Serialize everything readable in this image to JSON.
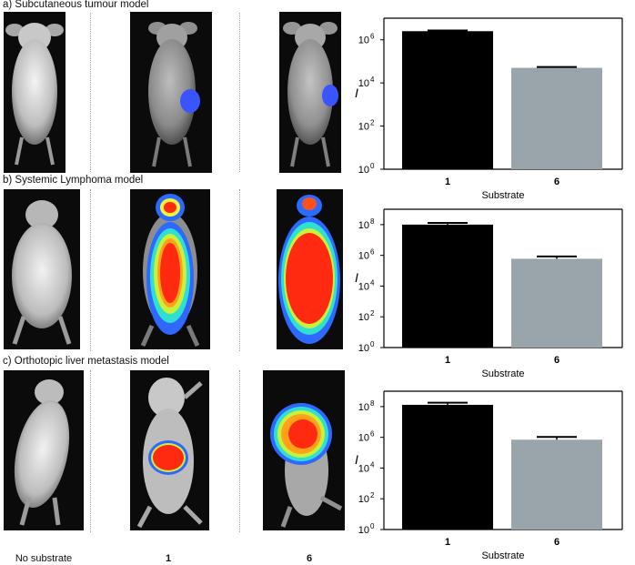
{
  "panels": [
    {
      "label": "a)   Subcutaneous tumour model"
    },
    {
      "label": "b)   Systemic Lymphoma model"
    },
    {
      "label": "c)   Orthotopic liver metastasis model"
    }
  ],
  "column_labels": [
    "No substrate",
    "1",
    "6"
  ],
  "chart_data": [
    {
      "type": "bar",
      "categories": [
        "1",
        "6"
      ],
      "values": [
        2500000,
        50000
      ],
      "errors": [
        200000,
        5000
      ],
      "colors": [
        "#000000",
        "#9aa4ab"
      ],
      "yscale": "log",
      "ylim": [
        1,
        10000000
      ],
      "yticks": [
        1,
        100,
        10000,
        1000000
      ],
      "ytick_labels": [
        "10",
        "10",
        "10",
        "10"
      ],
      "ytick_exponents": [
        "0",
        "2",
        "4",
        "6"
      ],
      "ylabel": "I",
      "xlabel": "Substrate"
    },
    {
      "type": "bar",
      "categories": [
        "1",
        "6"
      ],
      "values": [
        100000000,
        600000
      ],
      "errors": [
        30000000,
        250000
      ],
      "colors": [
        "#000000",
        "#9aa4ab"
      ],
      "yscale": "log",
      "ylim": [
        1,
        1000000000
      ],
      "yticks": [
        1,
        100,
        10000,
        1000000,
        100000000
      ],
      "ytick_labels": [
        "10",
        "10",
        "10",
        "10",
        "10"
      ],
      "ytick_exponents": [
        "0",
        "2",
        "4",
        "6",
        "8"
      ],
      "ylabel": "I",
      "xlabel": "Substrate"
    },
    {
      "type": "bar",
      "categories": [
        "1",
        "6"
      ],
      "values": [
        130000000,
        700000
      ],
      "errors": [
        50000000,
        350000
      ],
      "colors": [
        "#000000",
        "#9aa4ab"
      ],
      "yscale": "log",
      "ylim": [
        1,
        1000000000
      ],
      "yticks": [
        1,
        100,
        10000,
        1000000,
        100000000
      ],
      "ytick_labels": [
        "10",
        "10",
        "10",
        "10",
        "10"
      ],
      "ytick_exponents": [
        "0",
        "2",
        "4",
        "6",
        "8"
      ],
      "ylabel": "I",
      "xlabel": "Substrate"
    }
  ]
}
